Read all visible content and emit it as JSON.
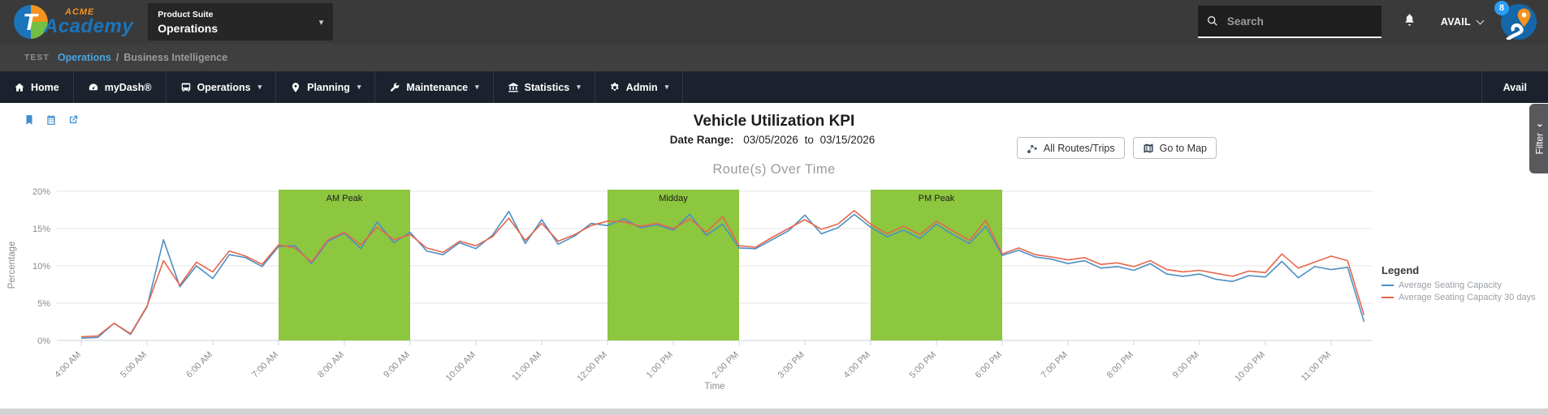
{
  "header": {
    "logo_acme": "ACME",
    "logo_academy": "Academy",
    "logo_letter": "T",
    "product_suite_label": "Product Suite",
    "product_suite_value": "Operations",
    "search_placeholder": "Search",
    "user_menu_label": "AVAIL",
    "notification_count": "8"
  },
  "breadcrumb": {
    "env": "TEST",
    "section": "Operations",
    "separator": "/",
    "current": "Business Intelligence"
  },
  "nav": {
    "items": [
      {
        "label": "Home",
        "icon": "home-icon",
        "caret": false
      },
      {
        "label": "myDash®",
        "icon": "dashboard-icon",
        "caret": false
      },
      {
        "label": "Operations",
        "icon": "bus-icon",
        "caret": true
      },
      {
        "label": "Planning",
        "icon": "map-marker-icon",
        "caret": true
      },
      {
        "label": "Maintenance",
        "icon": "wrench-icon",
        "caret": true
      },
      {
        "label": "Statistics",
        "icon": "bank-icon",
        "caret": true
      },
      {
        "label": "Admin",
        "icon": "gears-icon",
        "caret": true
      }
    ],
    "right_label": "Avail"
  },
  "toolbar": {
    "title": "Vehicle Utilization KPI",
    "date_range_label": "Date Range:",
    "date_from": "03/05/2026",
    "date_to_connector": "to",
    "date_to": "03/15/2026",
    "quick_icons": [
      "bookmark-icon",
      "calendar-icon",
      "external-link-icon"
    ],
    "buttons": [
      {
        "label": "All Routes/Trips",
        "icon": "route-icon"
      },
      {
        "label": "Go to Map",
        "icon": "map-icon"
      }
    ]
  },
  "filter_tab": {
    "label": "Filter",
    "chevron": "‹"
  },
  "colors": {
    "accent_link": "#4aa3e0",
    "badge_blue": "#2a9df4",
    "band_green": "#8dc63f",
    "series_blue": "#4d8fc4",
    "series_red": "#e7664c"
  },
  "chart_data": {
    "type": "line",
    "title": "Route(s) Over Time",
    "xlabel": "Time",
    "ylabel": "Percentage",
    "ylim": [
      0,
      21.5
    ],
    "grid": true,
    "legend_title": "Legend",
    "legend_position": "right",
    "ytick_values": [
      0,
      5,
      10,
      15,
      20
    ],
    "ytick_labels": [
      "0%",
      "5%",
      "10%",
      "15%",
      "20%"
    ],
    "x_tick_labels": [
      "4:00 AM",
      "5:00 AM",
      "6:00 AM",
      "7:00 AM",
      "8:00 AM",
      "9:00 AM",
      "10:00 AM",
      "11:00 AM",
      "12:00 PM",
      "1:00 PM",
      "2:00 PM",
      "3:00 PM",
      "4:00 PM",
      "5:00 PM",
      "6:00 PM",
      "7:00 PM",
      "8:00 PM",
      "9:00 PM",
      "10:00 PM",
      "11:00 PM"
    ],
    "x_start_hour": 4,
    "x_step_hours": 0.25,
    "band_color": "#8dc63f",
    "bands": [
      {
        "label": "AM Peak",
        "from_hour": 7,
        "to_hour": 9
      },
      {
        "label": "Midday",
        "from_hour": 12,
        "to_hour": 14
      },
      {
        "label": "PM Peak",
        "from_hour": 16,
        "to_hour": 18
      }
    ],
    "series": [
      {
        "name": "Average Seating Capacity",
        "color": "#4d8fc4",
        "values": [
          0.3,
          0.4,
          2.3,
          0.8,
          4.5,
          13.5,
          7.2,
          10.0,
          8.3,
          11.5,
          11.1,
          9.9,
          12.6,
          12.7,
          10.3,
          13.3,
          14.4,
          12.3,
          15.9,
          13.1,
          14.5,
          12.0,
          11.5,
          13.1,
          12.3,
          14.1,
          17.3,
          13.0,
          16.2,
          12.9,
          14.0,
          15.7,
          15.4,
          16.3,
          15.1,
          15.5,
          14.8,
          16.9,
          14.1,
          15.6,
          12.4,
          12.3,
          13.5,
          14.7,
          16.8,
          14.3,
          15.1,
          16.9,
          15.2,
          13.9,
          14.8,
          13.7,
          15.6,
          14.2,
          13.0,
          15.3,
          11.4,
          12.1,
          11.2,
          10.9,
          10.3,
          10.7,
          9.7,
          9.9,
          9.4,
          10.3,
          8.9,
          8.6,
          8.9,
          8.2,
          7.9,
          8.7,
          8.5,
          10.6,
          8.4,
          9.9,
          9.5,
          9.8,
          2.5
        ]
      },
      {
        "name": "Average Seating Capacity 30 days",
        "color": "#e7664c",
        "values": [
          0.5,
          0.6,
          2.3,
          0.9,
          4.6,
          10.7,
          7.4,
          10.5,
          9.2,
          12.0,
          11.3,
          10.2,
          12.8,
          12.4,
          10.5,
          13.5,
          14.5,
          12.8,
          15.2,
          13.5,
          14.2,
          12.4,
          11.8,
          13.3,
          12.7,
          13.9,
          16.4,
          13.4,
          15.7,
          13.3,
          14.2,
          15.4,
          16.0,
          15.9,
          15.3,
          15.7,
          15.0,
          16.3,
          14.5,
          16.6,
          12.7,
          12.5,
          13.8,
          15.0,
          16.2,
          14.9,
          15.6,
          17.4,
          15.6,
          14.3,
          15.3,
          14.2,
          16.0,
          14.7,
          13.4,
          16.1,
          11.6,
          12.4,
          11.5,
          11.2,
          10.8,
          11.1,
          10.2,
          10.4,
          9.9,
          10.7,
          9.5,
          9.2,
          9.4,
          9.0,
          8.6,
          9.3,
          9.1,
          11.6,
          9.7,
          10.5,
          11.3,
          10.7,
          3.4
        ]
      }
    ]
  }
}
